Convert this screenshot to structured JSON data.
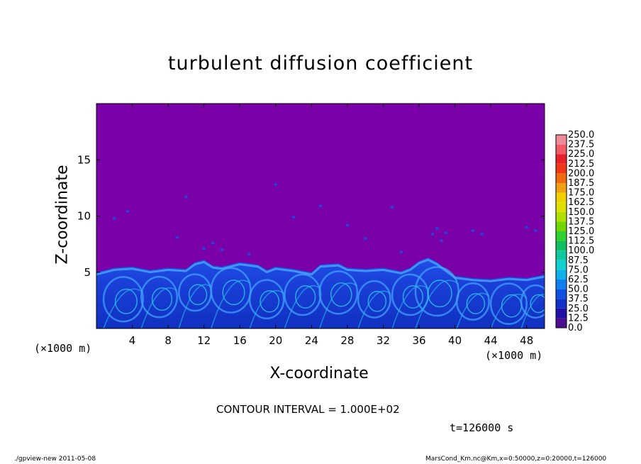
{
  "chart_data": {
    "type": "heatmap",
    "title": "turbulent diffusion coefficient",
    "xlabel": "X-coordinate",
    "ylabel": "Z-coordinate",
    "x_unit": "(×1000 m)",
    "xlim": [
      0,
      50
    ],
    "ylim": [
      0,
      20
    ],
    "x_ticks": [
      4,
      8,
      12,
      16,
      20,
      24,
      28,
      32,
      36,
      40,
      44,
      48
    ],
    "y_ticks": [
      5,
      10,
      15
    ],
    "colorbar": {
      "levels": [
        "250.0",
        "237.5",
        "225.0",
        "212.5",
        "200.0",
        "187.5",
        "175.0",
        "162.5",
        "150.0",
        "137.5",
        "125.0",
        "112.5",
        "100.0",
        "87.5",
        "75.0",
        "62.5",
        "50.0",
        "37.5",
        "25.0",
        "12.5",
        "0.0"
      ],
      "colors": [
        "#f08a9a",
        "#f25a6a",
        "#e8202a",
        "#f03818",
        "#f06a10",
        "#f0a010",
        "#f0d000",
        "#e0e000",
        "#b0e000",
        "#70d800",
        "#30d030",
        "#10c060",
        "#10c8a0",
        "#10d0d0",
        "#10b0e8",
        "#1080f0",
        "#1050e0",
        "#1030c8",
        "#2010a8",
        "#4a1090"
      ],
      "background": "#7a00a8"
    },
    "contour_interval": "CONTOUR INTERVAL = 1.000E+02",
    "time": "t=126000 s",
    "footer_left": "./gpview-new  2011-05-08",
    "footer_right": "MarsCond_Km.nc@Km,x=0:50000,z=0:20000,t=126000",
    "boundary_layer_top": [
      [
        0,
        5.0
      ],
      [
        2,
        5.4
      ],
      [
        4,
        5.5
      ],
      [
        6,
        5.2
      ],
      [
        8,
        5.4
      ],
      [
        10,
        5.3
      ],
      [
        11,
        5.9
      ],
      [
        12,
        6.1
      ],
      [
        13,
        5.6
      ],
      [
        14,
        5.5
      ],
      [
        16,
        5.9
      ],
      [
        18,
        5.7
      ],
      [
        19,
        5.2
      ],
      [
        20,
        5.5
      ],
      [
        22,
        5.3
      ],
      [
        24,
        5.0
      ],
      [
        25,
        5.7
      ],
      [
        27,
        5.8
      ],
      [
        28,
        5.4
      ],
      [
        30,
        5.3
      ],
      [
        32,
        5.4
      ],
      [
        34,
        5.1
      ],
      [
        35,
        5.4
      ],
      [
        36,
        6.0
      ],
      [
        37,
        6.3
      ],
      [
        38,
        5.9
      ],
      [
        39,
        5.3
      ],
      [
        40,
        4.7
      ],
      [
        42,
        4.5
      ],
      [
        44,
        4.4
      ],
      [
        46,
        4.6
      ],
      [
        48,
        4.5
      ],
      [
        50,
        4.8
      ]
    ]
  }
}
